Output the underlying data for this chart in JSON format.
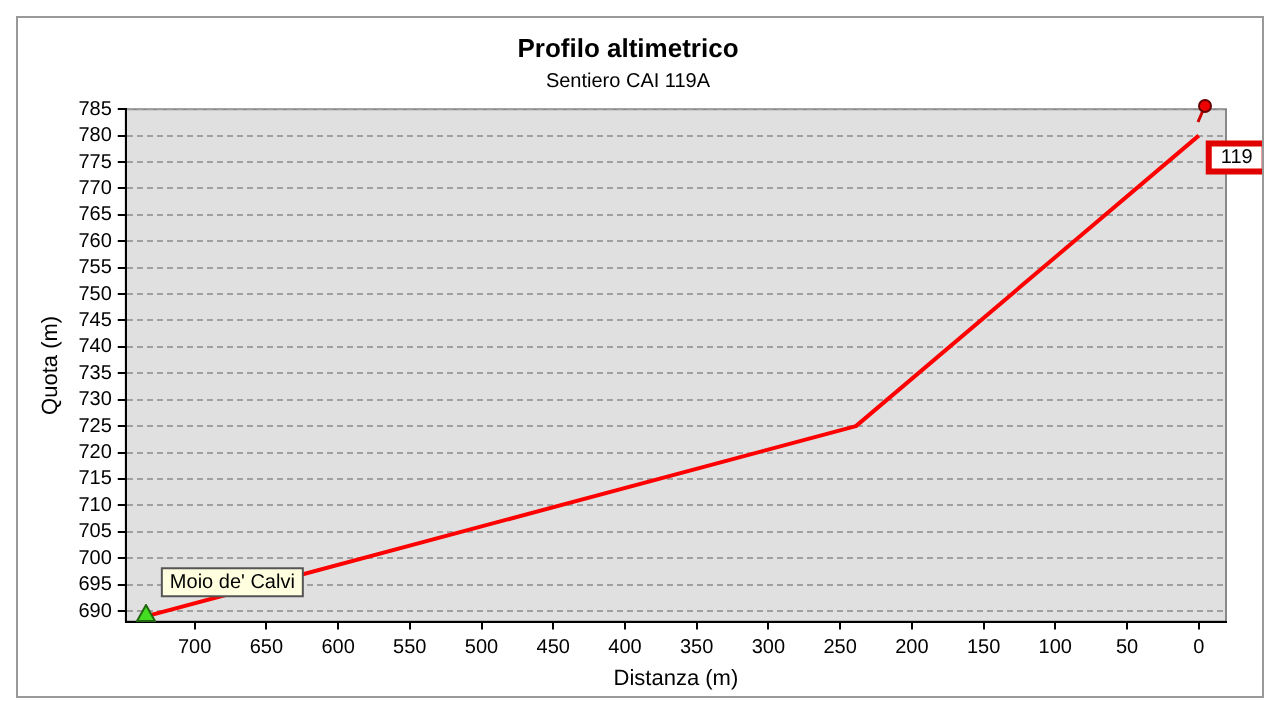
{
  "chart_data": {
    "type": "line",
    "title": "Profilo altimetrico",
    "subtitle": "Sentiero CAI 119A",
    "xlabel": "Distanza (m)",
    "ylabel": "Quota (m)",
    "x": [
      734,
      239,
      0
    ],
    "series": [
      {
        "color": "#ff0000",
        "values": [
          689,
          725,
          780
        ]
      }
    ],
    "xlim": [
      748,
      -19
    ],
    "xticks": [
      700,
      650,
      600,
      550,
      500,
      450,
      400,
      350,
      300,
      250,
      200,
      150,
      100,
      50,
      0
    ],
    "ylim": [
      688,
      785
    ],
    "yticks": [
      690,
      695,
      700,
      705,
      710,
      715,
      720,
      725,
      730,
      735,
      740,
      745,
      750,
      755,
      760,
      765,
      770,
      775,
      780,
      785
    ],
    "grid": "y",
    "legend": false,
    "marker": "none",
    "line_style": "solid",
    "annotations": [
      {
        "text": "Moio de' Calvi",
        "x": 734,
        "y": 689
      },
      {
        "text": "119",
        "x": 0,
        "y": 780
      }
    ]
  }
}
